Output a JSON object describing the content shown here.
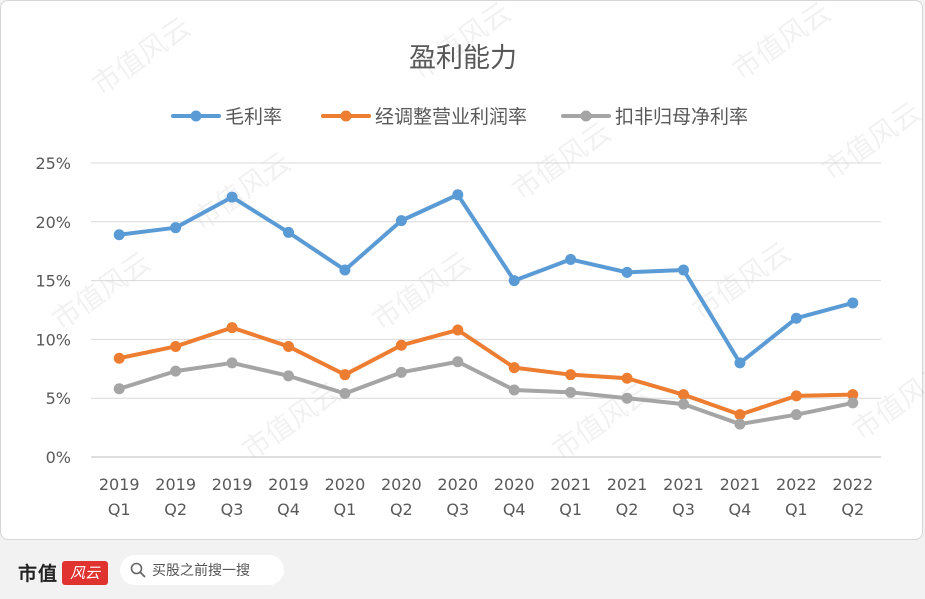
{
  "chart_data": {
    "type": "line",
    "title": "盈利能力",
    "categories": [
      [
        "2019",
        "Q1"
      ],
      [
        "2019",
        "Q2"
      ],
      [
        "2019",
        "Q3"
      ],
      [
        "2019",
        "Q4"
      ],
      [
        "2020",
        "Q1"
      ],
      [
        "2020",
        "Q2"
      ],
      [
        "2020",
        "Q3"
      ],
      [
        "2020",
        "Q4"
      ],
      [
        "2021",
        "Q1"
      ],
      [
        "2021",
        "Q2"
      ],
      [
        "2021",
        "Q3"
      ],
      [
        "2021",
        "Q4"
      ],
      [
        "2022",
        "Q1"
      ],
      [
        "2022",
        "Q2"
      ]
    ],
    "series": [
      {
        "name": "毛利率",
        "color": "#5b9bd5",
        "values": [
          18.9,
          19.5,
          22.1,
          19.1,
          15.9,
          20.1,
          22.3,
          15.0,
          16.8,
          15.7,
          15.9,
          8.0,
          11.8,
          13.1
        ]
      },
      {
        "name": "经调整营业利润率",
        "color": "#ed7d31",
        "values": [
          8.4,
          9.4,
          11.0,
          9.4,
          7.0,
          9.5,
          10.8,
          7.6,
          7.0,
          6.7,
          5.3,
          3.6,
          5.2,
          5.3
        ]
      },
      {
        "name": "扣非归母净利率",
        "color": "#a5a5a5",
        "values": [
          5.8,
          7.3,
          8.0,
          6.9,
          5.4,
          7.2,
          8.1,
          5.7,
          5.5,
          5.0,
          4.5,
          2.8,
          3.6,
          4.6
        ]
      }
    ],
    "ylim": [
      0,
      25
    ],
    "yticks": [
      "0%",
      "5%",
      "10%",
      "15%",
      "20%",
      "25%"
    ],
    "ytick_values": [
      0,
      5,
      10,
      15,
      20,
      25
    ],
    "xlabel": "",
    "ylabel": "",
    "legend_position": "top",
    "grid": true
  },
  "footer": {
    "brand": "市值",
    "brand_mark": "风云",
    "search_placeholder": "买股之前搜一搜"
  },
  "watermark": "市值风云"
}
